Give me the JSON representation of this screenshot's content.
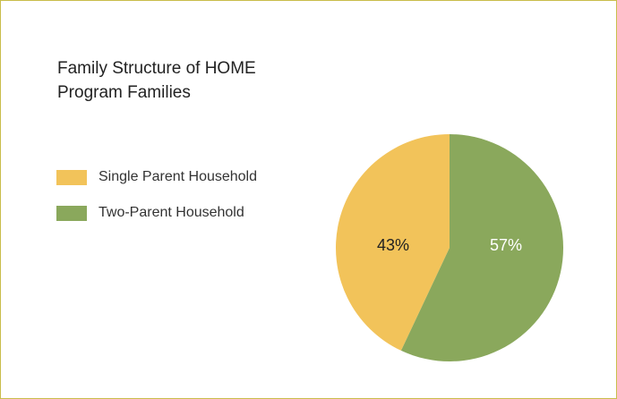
{
  "chart_data": {
    "type": "pie",
    "title": "Family Structure of HOME Program Families",
    "slices": [
      {
        "label": "Single Parent Household",
        "value": 43,
        "display": "43%",
        "color": "#f2c35a",
        "text_color": "#222222"
      },
      {
        "label": "Two-Parent Household",
        "value": 57,
        "display": "57%",
        "color": "#8aa85c",
        "text_color": "#ffffff"
      }
    ],
    "legend_position": "left"
  },
  "colors": {
    "border": "#c9bd4a"
  }
}
